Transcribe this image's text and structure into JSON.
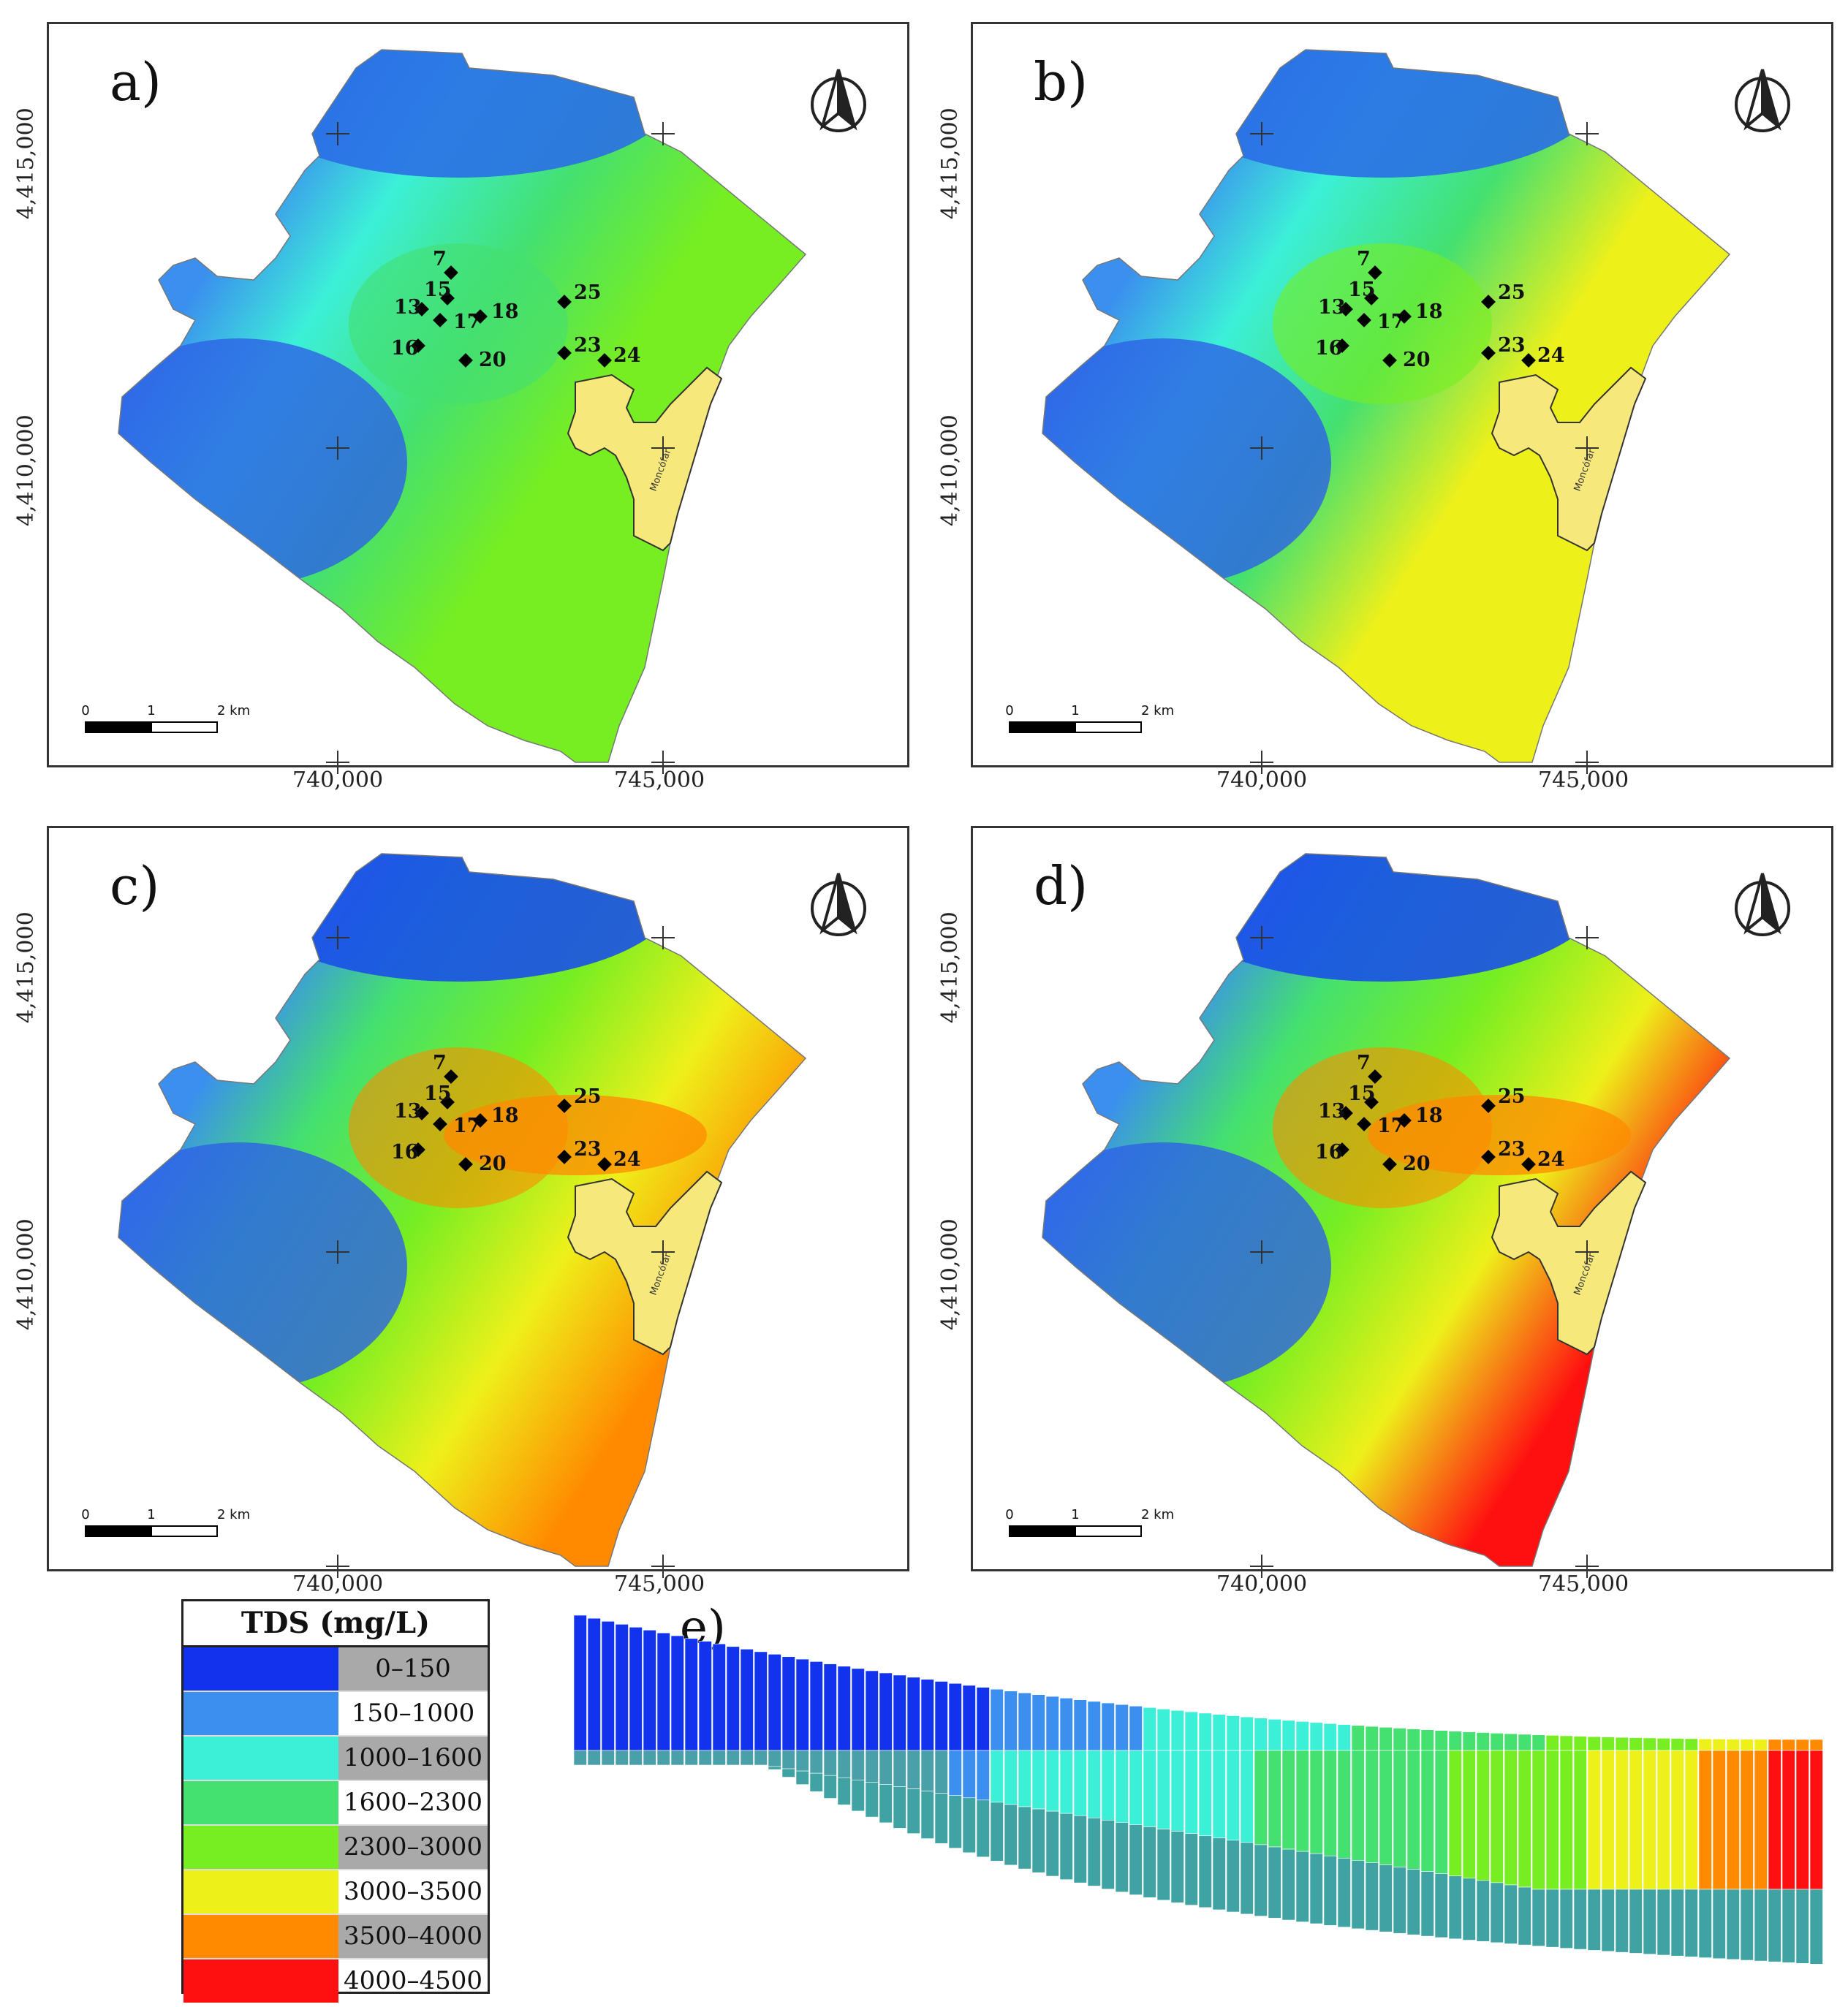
{
  "panels": [
    {
      "label": "a)",
      "stage": 0
    },
    {
      "label": "b)",
      "stage": 1
    },
    {
      "label": "c)",
      "stage": 2
    },
    {
      "label": "d)",
      "stage": 3
    }
  ],
  "axis_ticks": {
    "x": [
      "740,000",
      "745,000"
    ],
    "y": [
      "4,415,000",
      "4,410,000"
    ]
  },
  "scale_bar": {
    "labels": [
      "0",
      "1",
      "2 km"
    ]
  },
  "city_label": "Moncófar",
  "wells": [
    {
      "id": "7"
    },
    {
      "id": "15"
    },
    {
      "id": "13"
    },
    {
      "id": "17"
    },
    {
      "id": "18"
    },
    {
      "id": "16"
    },
    {
      "id": "20"
    },
    {
      "id": "25"
    },
    {
      "id": "23"
    },
    {
      "id": "24"
    }
  ],
  "legend": {
    "title": "TDS (mg/L)",
    "classes": [
      {
        "range": "0–150",
        "color": "#1133ee"
      },
      {
        "range": "150–1000",
        "color": "#3b8fee"
      },
      {
        "range": "1000–1600",
        "color": "#3cf0d8"
      },
      {
        "range": "1600–2300",
        "color": "#44e070"
      },
      {
        "range": "2300–3000",
        "color": "#77ee22"
      },
      {
        "range": "3000–3500",
        "color": "#eef01a"
      },
      {
        "range": "3500–4000",
        "color": "#ff8a00"
      },
      {
        "range": "4000–4500",
        "color": "#ff1010"
      }
    ]
  },
  "section_label": "e)"
}
